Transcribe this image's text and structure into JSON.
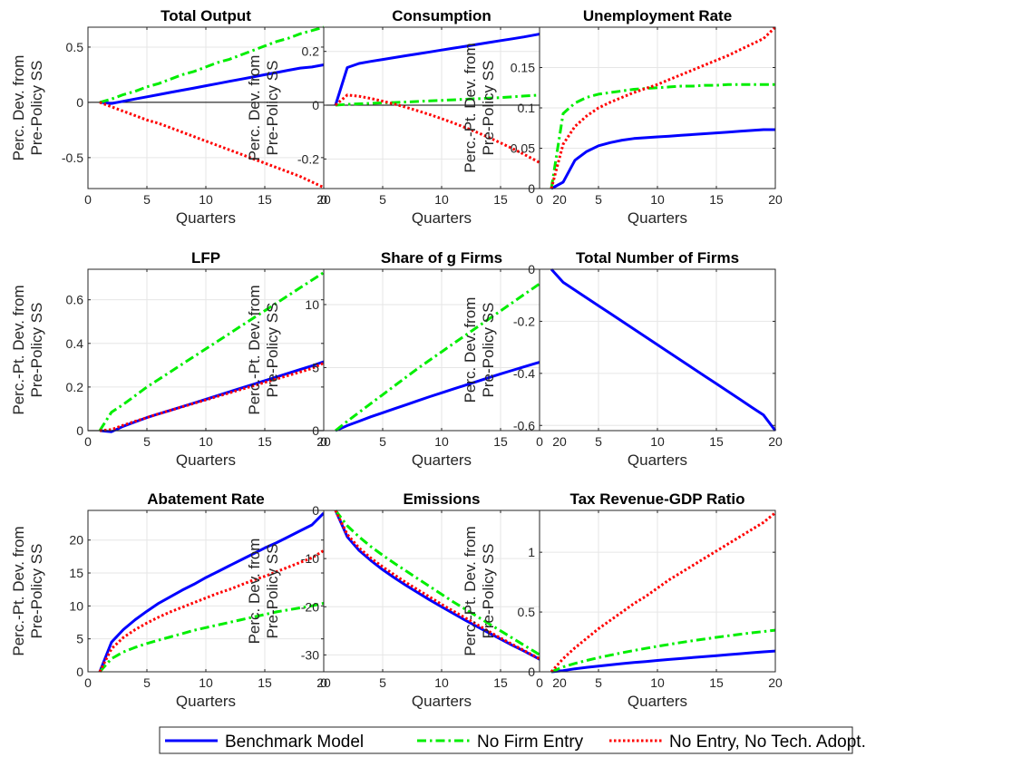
{
  "colors": {
    "benchmark": "#0000ff",
    "no_entry": "#00ee00",
    "no_tech": "#ff0000",
    "axis": "#262626",
    "grid": "#e6e6e6"
  },
  "legend": {
    "placement": "bottom-center",
    "entries": [
      {
        "key": "benchmark",
        "label": "Benchmark Model",
        "style": "solid"
      },
      {
        "key": "no_entry",
        "label": "No Firm Entry",
        "style": "dashdot"
      },
      {
        "key": "no_tech",
        "label": "No Entry, No Tech. Adopt.",
        "style": "dotted"
      }
    ]
  },
  "chart_data": [
    {
      "type": "line",
      "title": "Total Output",
      "xlabel": "Quarters",
      "ylabel": [
        "Perc. Dev. from",
        "Pre-Policy SS"
      ],
      "xlim": [
        0,
        20
      ],
      "ylim": [
        -0.78,
        0.68
      ],
      "xticks": [
        0,
        5,
        10,
        15,
        20
      ],
      "yticks": [
        -0.5,
        0,
        0.5
      ],
      "yticklabels": [
        "-0.5",
        "0",
        "0.5"
      ],
      "zero_line": true,
      "grid": true,
      "x": [
        1,
        2,
        3,
        4,
        5,
        6,
        7,
        8,
        9,
        10,
        11,
        12,
        13,
        14,
        15,
        16,
        17,
        18,
        19,
        20
      ],
      "series": [
        {
          "key": "benchmark",
          "values": [
            0,
            -0.01,
            0.01,
            0.03,
            0.05,
            0.07,
            0.09,
            0.11,
            0.13,
            0.15,
            0.17,
            0.19,
            0.21,
            0.23,
            0.25,
            0.27,
            0.29,
            0.31,
            0.32,
            0.34
          ]
        },
        {
          "key": "no_entry",
          "values": [
            0,
            0.03,
            0.07,
            0.1,
            0.14,
            0.17,
            0.21,
            0.25,
            0.28,
            0.32,
            0.36,
            0.39,
            0.43,
            0.47,
            0.51,
            0.55,
            0.58,
            0.62,
            0.65,
            0.68
          ]
        },
        {
          "key": "no_tech",
          "values": [
            0,
            -0.04,
            -0.08,
            -0.12,
            -0.16,
            -0.19,
            -0.23,
            -0.27,
            -0.31,
            -0.35,
            -0.39,
            -0.43,
            -0.47,
            -0.51,
            -0.55,
            -0.59,
            -0.63,
            -0.67,
            -0.72,
            -0.77
          ]
        }
      ]
    },
    {
      "type": "line",
      "title": "Consumption",
      "xlabel": "Quarters",
      "ylabel": [
        "Perc. Dev. from",
        "Pre-Policy SS"
      ],
      "xlim": [
        0,
        20
      ],
      "ylim": [
        -0.31,
        0.29
      ],
      "xticks": [
        0,
        5,
        10,
        15,
        20
      ],
      "yticks": [
        -0.2,
        0,
        0.2
      ],
      "yticklabels": [
        "-0.2",
        "0",
        "0.2"
      ],
      "zero_line": true,
      "grid": true,
      "x": [
        1,
        2,
        3,
        4,
        5,
        6,
        7,
        8,
        9,
        10,
        11,
        12,
        13,
        14,
        15,
        16,
        17,
        18,
        19,
        20
      ],
      "series": [
        {
          "key": "benchmark",
          "values": [
            0,
            0.14,
            0.155,
            0.163,
            0.17,
            0.177,
            0.184,
            0.191,
            0.198,
            0.205,
            0.212,
            0.219,
            0.226,
            0.233,
            0.24,
            0.247,
            0.254,
            0.262,
            0.27,
            0.278
          ]
        },
        {
          "key": "no_entry",
          "values": [
            0,
            0.003,
            0.005,
            0.007,
            0.009,
            0.01,
            0.012,
            0.014,
            0.016,
            0.018,
            0.02,
            0.022,
            0.024,
            0.026,
            0.028,
            0.031,
            0.034,
            0.037,
            0.04,
            0.043
          ]
        },
        {
          "key": "no_tech",
          "values": [
            0,
            0.038,
            0.033,
            0.025,
            0.015,
            0.004,
            -0.008,
            -0.021,
            -0.035,
            -0.05,
            -0.066,
            -0.083,
            -0.101,
            -0.12,
            -0.14,
            -0.161,
            -0.183,
            -0.206,
            -0.23,
            -0.305
          ]
        }
      ]
    },
    {
      "type": "line",
      "title": "Unemployment Rate",
      "xlabel": "Quarters",
      "ylabel": [
        "Perc.-Pt. Dev. from",
        "Pre-Policy SS"
      ],
      "xlim": [
        0,
        20
      ],
      "ylim": [
        0,
        0.2
      ],
      "xticks": [
        0,
        5,
        10,
        15,
        20
      ],
      "yticks": [
        0,
        0.05,
        0.1,
        0.15
      ],
      "yticklabels": [
        "0",
        "0.05",
        "0.1",
        "0.15"
      ],
      "zero_line": false,
      "grid": true,
      "x": [
        1,
        2,
        3,
        4,
        5,
        6,
        7,
        8,
        9,
        10,
        11,
        12,
        13,
        14,
        15,
        16,
        17,
        18,
        19,
        20
      ],
      "series": [
        {
          "key": "benchmark",
          "values": [
            0,
            0.008,
            0.035,
            0.046,
            0.053,
            0.057,
            0.06,
            0.062,
            0.063,
            0.064,
            0.065,
            0.066,
            0.067,
            0.068,
            0.069,
            0.07,
            0.071,
            0.072,
            0.073,
            0.073
          ]
        },
        {
          "key": "no_entry",
          "values": [
            0,
            0.093,
            0.106,
            0.113,
            0.117,
            0.119,
            0.121,
            0.123,
            0.124,
            0.125,
            0.126,
            0.127,
            0.127,
            0.128,
            0.128,
            0.129,
            0.129,
            0.129,
            0.129,
            0.129
          ]
        },
        {
          "key": "no_tech",
          "values": [
            0,
            0.055,
            0.077,
            0.09,
            0.1,
            0.107,
            0.113,
            0.119,
            0.124,
            0.129,
            0.135,
            0.141,
            0.147,
            0.153,
            0.159,
            0.165,
            0.172,
            0.179,
            0.186,
            0.2
          ]
        }
      ]
    },
    {
      "type": "line",
      "title": "LFP",
      "xlabel": "Quarters",
      "ylabel": [
        "Perc.-Pt. Dev. from",
        "Pre-Policy SS"
      ],
      "xlim": [
        0,
        20
      ],
      "ylim": [
        0,
        0.74
      ],
      "xticks": [
        0,
        5,
        10,
        15,
        20
      ],
      "yticks": [
        0,
        0.2,
        0.4,
        0.6
      ],
      "yticklabels": [
        "0",
        "0.2",
        "0.4",
        "0.6"
      ],
      "zero_line": true,
      "grid": true,
      "x": [
        1,
        2,
        3,
        4,
        5,
        6,
        7,
        8,
        9,
        10,
        11,
        12,
        13,
        14,
        15,
        16,
        17,
        18,
        19,
        20
      ],
      "series": [
        {
          "key": "benchmark",
          "values": [
            0,
            -0.005,
            0.02,
            0.04,
            0.06,
            0.077,
            0.093,
            0.11,
            0.127,
            0.144,
            0.161,
            0.178,
            0.195,
            0.212,
            0.229,
            0.246,
            0.263,
            0.28,
            0.297,
            0.316
          ]
        },
        {
          "key": "no_entry",
          "values": [
            0,
            0.085,
            0.12,
            0.16,
            0.2,
            0.235,
            0.27,
            0.305,
            0.34,
            0.375,
            0.41,
            0.445,
            0.48,
            0.515,
            0.55,
            0.585,
            0.62,
            0.655,
            0.69,
            0.725
          ]
        },
        {
          "key": "no_tech",
          "values": [
            0,
            0.005,
            0.025,
            0.043,
            0.06,
            0.077,
            0.093,
            0.109,
            0.125,
            0.141,
            0.157,
            0.173,
            0.189,
            0.205,
            0.221,
            0.237,
            0.253,
            0.269,
            0.285,
            0.31
          ]
        }
      ]
    },
    {
      "type": "line",
      "title": "Share of g Firms",
      "xlabel": "Quarters",
      "ylabel": [
        "Perc.-Pt. Dev. from",
        "Pre-Policy SS"
      ],
      "xlim": [
        0,
        20
      ],
      "ylim": [
        0,
        12.8
      ],
      "xticks": [
        0,
        5,
        10,
        15,
        20
      ],
      "yticks": [
        0,
        5,
        10
      ],
      "yticklabels": [
        "0",
        "5",
        "10"
      ],
      "zero_line": false,
      "grid": true,
      "x": [
        1,
        2,
        3,
        4,
        5,
        6,
        7,
        8,
        9,
        10,
        11,
        12,
        13,
        14,
        15,
        16,
        17,
        18,
        19,
        20
      ],
      "series": [
        {
          "key": "benchmark",
          "values": [
            0,
            0.4,
            0.75,
            1.1,
            1.42,
            1.74,
            2.06,
            2.38,
            2.7,
            3.0,
            3.3,
            3.6,
            3.9,
            4.2,
            4.5,
            4.78,
            5.06,
            5.34,
            5.6,
            5.86
          ]
        },
        {
          "key": "no_entry",
          "values": [
            0,
            0.75,
            1.45,
            2.15,
            2.85,
            3.55,
            4.25,
            4.95,
            5.6,
            6.25,
            6.9,
            7.55,
            8.2,
            8.85,
            9.5,
            10.15,
            10.8,
            11.45,
            12.1,
            12.7
          ]
        }
      ]
    },
    {
      "type": "line",
      "title": "Total Number of Firms",
      "xlabel": "Quarters",
      "ylabel": [
        "Perc. Dev. from",
        "Pre-Policy SS"
      ],
      "xlim": [
        0,
        20
      ],
      "ylim": [
        -0.62,
        0
      ],
      "xticks": [
        0,
        5,
        10,
        15,
        20
      ],
      "yticks": [
        -0.6,
        -0.4,
        -0.2,
        0
      ],
      "yticklabels": [
        "-0.6",
        "-0.4",
        "-0.2",
        "0"
      ],
      "zero_line": false,
      "grid": true,
      "x": [
        1,
        2,
        3,
        4,
        5,
        6,
        7,
        8,
        9,
        10,
        11,
        12,
        13,
        14,
        15,
        16,
        17,
        18,
        19,
        20
      ],
      "series": [
        {
          "key": "benchmark",
          "values": [
            0,
            -0.05,
            -0.08,
            -0.11,
            -0.14,
            -0.17,
            -0.2,
            -0.23,
            -0.26,
            -0.29,
            -0.32,
            -0.35,
            -0.38,
            -0.41,
            -0.44,
            -0.47,
            -0.5,
            -0.53,
            -0.56,
            -0.62
          ]
        }
      ]
    },
    {
      "type": "line",
      "title": "Abatement Rate",
      "xlabel": "Quarters",
      "ylabel": [
        "Perc.-Pt. Dev. from",
        "Pre-Policy SS"
      ],
      "xlim": [
        0,
        20
      ],
      "ylim": [
        0,
        24.5
      ],
      "xticks": [
        0,
        5,
        10,
        15,
        20
      ],
      "yticks": [
        0,
        5,
        10,
        15,
        20
      ],
      "yticklabels": [
        "0",
        "5",
        "10",
        "15",
        "20"
      ],
      "zero_line": false,
      "grid": true,
      "x": [
        1,
        2,
        3,
        4,
        5,
        6,
        7,
        8,
        9,
        10,
        11,
        12,
        13,
        14,
        15,
        16,
        17,
        18,
        19,
        20
      ],
      "series": [
        {
          "key": "benchmark",
          "values": [
            0,
            4.5,
            6.4,
            7.9,
            9.2,
            10.4,
            11.4,
            12.4,
            13.3,
            14.3,
            15.2,
            16.1,
            17.0,
            17.9,
            18.8,
            19.6,
            20.5,
            21.4,
            22.3,
            24.1
          ]
        },
        {
          "key": "no_entry",
          "values": [
            0,
            2.0,
            3.0,
            3.7,
            4.3,
            4.8,
            5.3,
            5.8,
            6.3,
            6.7,
            7.1,
            7.5,
            7.9,
            8.3,
            8.7,
            9.1,
            9.4,
            9.7,
            10.0,
            10.4
          ]
        },
        {
          "key": "no_tech",
          "values": [
            0,
            3.5,
            5.2,
            6.4,
            7.4,
            8.3,
            9.1,
            9.8,
            10.5,
            11.2,
            11.9,
            12.5,
            13.2,
            13.9,
            14.5,
            15.2,
            15.9,
            16.6,
            17.3,
            18.4
          ]
        }
      ]
    },
    {
      "type": "line",
      "title": "Emissions",
      "xlabel": "Quarters",
      "ylabel": [
        "Perc. Dev. from",
        "Pre-Policy SS"
      ],
      "xlim": [
        0,
        20
      ],
      "ylim": [
        -33.5,
        0
      ],
      "xticks": [
        0,
        5,
        10,
        15,
        20
      ],
      "yticks": [
        -30,
        -20,
        -10,
        0
      ],
      "yticklabels": [
        "-30",
        "-20",
        "-10",
        "0"
      ],
      "zero_line": false,
      "grid": true,
      "x": [
        1,
        2,
        3,
        4,
        5,
        6,
        7,
        8,
        9,
        10,
        11,
        12,
        13,
        14,
        15,
        16,
        17,
        18,
        19,
        20
      ],
      "series": [
        {
          "key": "benchmark",
          "values": [
            0,
            -5.5,
            -8.3,
            -10.4,
            -12.3,
            -14.0,
            -15.6,
            -17.1,
            -18.6,
            -20.0,
            -21.4,
            -22.8,
            -24.1,
            -25.4,
            -26.7,
            -28.0,
            -29.2,
            -30.5,
            -31.8,
            -33.3
          ]
        },
        {
          "key": "no_entry",
          "values": [
            0,
            -3.2,
            -5.5,
            -7.5,
            -9.3,
            -11.0,
            -12.6,
            -14.2,
            -15.8,
            -17.4,
            -19.0,
            -20.5,
            -22.0,
            -23.5,
            -25.0,
            -26.5,
            -28.0,
            -29.5,
            -31.0,
            -33.2
          ]
        },
        {
          "key": "no_tech",
          "values": [
            0,
            -5.0,
            -7.8,
            -9.9,
            -11.7,
            -13.4,
            -15.0,
            -16.5,
            -18.0,
            -19.5,
            -20.9,
            -22.3,
            -23.7,
            -25.1,
            -26.5,
            -27.8,
            -29.1,
            -30.4,
            -31.7,
            -33.3
          ]
        }
      ]
    },
    {
      "type": "line",
      "title": "Tax Revenue-GDP Ratio",
      "xlabel": "Quarters",
      "ylabel": [
        "Perc.-Pt. Dev. from",
        "Pre-Policy SS"
      ],
      "xlim": [
        0,
        20
      ],
      "ylim": [
        0,
        1.35
      ],
      "xticks": [
        0,
        5,
        10,
        15,
        20
      ],
      "yticks": [
        0,
        0.5,
        1
      ],
      "yticklabels": [
        "0",
        "0.5",
        "1"
      ],
      "zero_line": false,
      "grid": true,
      "x": [
        1,
        2,
        3,
        4,
        5,
        6,
        7,
        8,
        9,
        10,
        11,
        12,
        13,
        14,
        15,
        16,
        17,
        18,
        19,
        20
      ],
      "series": [
        {
          "key": "benchmark",
          "values": [
            0,
            0.01,
            0.025,
            0.037,
            0.048,
            0.058,
            0.068,
            0.077,
            0.086,
            0.095,
            0.103,
            0.111,
            0.119,
            0.127,
            0.135,
            0.143,
            0.151,
            0.159,
            0.167,
            0.174
          ]
        },
        {
          "key": "no_entry",
          "values": [
            0,
            0.04,
            0.07,
            0.095,
            0.118,
            0.139,
            0.159,
            0.178,
            0.196,
            0.213,
            0.229,
            0.245,
            0.26,
            0.274,
            0.288,
            0.301,
            0.314,
            0.326,
            0.337,
            0.348
          ]
        },
        {
          "key": "no_tech",
          "values": [
            0,
            0.11,
            0.2,
            0.28,
            0.36,
            0.43,
            0.5,
            0.57,
            0.63,
            0.7,
            0.77,
            0.83,
            0.89,
            0.95,
            1.01,
            1.07,
            1.13,
            1.19,
            1.25,
            1.33
          ]
        }
      ]
    }
  ]
}
